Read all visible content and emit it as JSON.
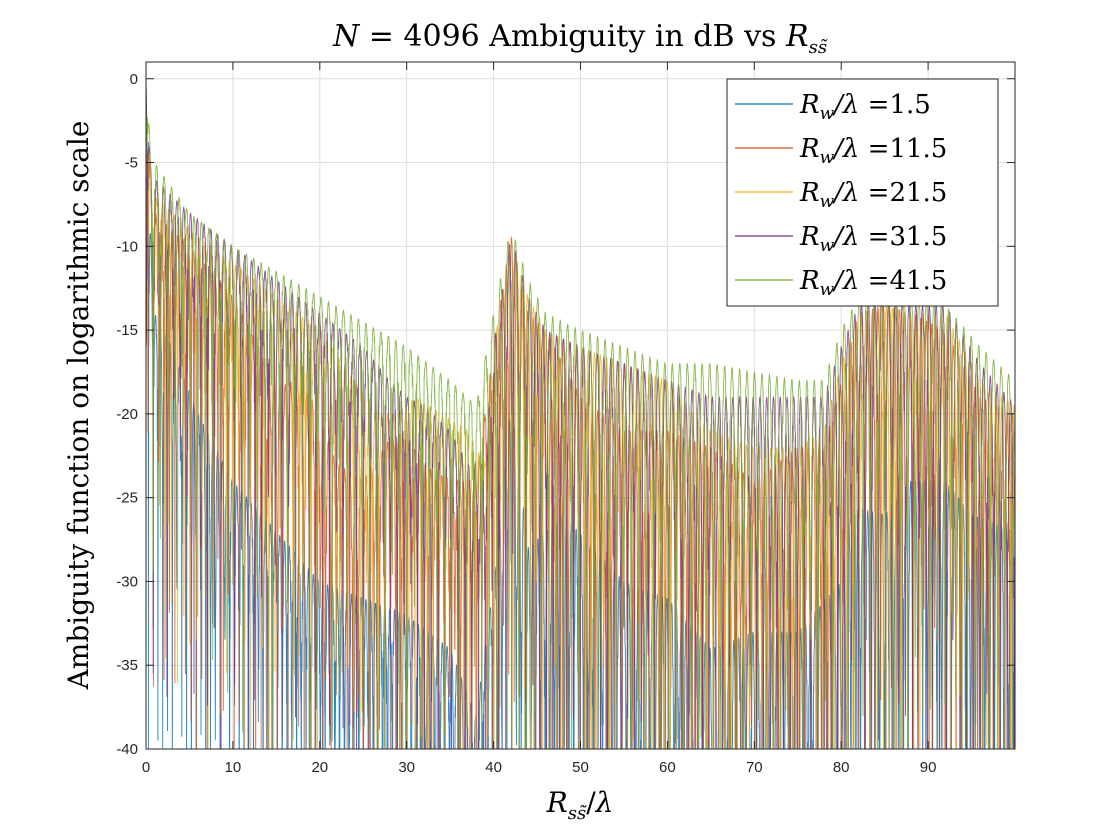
{
  "chart_data": {
    "type": "line",
    "title": "N = 4096 Ambiguity in dB vs R_ss̃",
    "xlabel": "R_ss̃/λ",
    "ylabel": "Ambiguity function on logarithmic scale",
    "xlim": [
      0,
      100
    ],
    "ylim": [
      -40,
      1
    ],
    "x_ticks": [
      0,
      10,
      20,
      30,
      40,
      50,
      60,
      70,
      80,
      90
    ],
    "x_tick_labels": [
      "0",
      "10",
      "20",
      "30",
      "40",
      "50",
      "60",
      "70",
      "80",
      "90"
    ],
    "y_ticks": [
      0,
      -5,
      -10,
      -15,
      -20,
      -25,
      -30,
      -35,
      -40
    ],
    "y_tick_labels": [
      "0",
      "-5",
      "-10",
      "-15",
      "-20",
      "-25",
      "-30",
      "-35",
      "-40"
    ],
    "grid": true,
    "legend_position": "top-right",
    "series": [
      {
        "name": "R_w/λ =1.5",
        "legend_label": "=1.5",
        "color": "#0072BD",
        "envelope": [
          [
            0,
            0
          ],
          [
            0.5,
            -9
          ],
          [
            1,
            -14
          ],
          [
            3,
            -16
          ],
          [
            6,
            -20
          ],
          [
            10,
            -24
          ],
          [
            15,
            -27
          ],
          [
            20,
            -30
          ],
          [
            25,
            -31
          ],
          [
            30,
            -32
          ],
          [
            35,
            -34
          ],
          [
            38,
            -38
          ],
          [
            40,
            -30
          ],
          [
            42,
            -19.3
          ],
          [
            44,
            -28
          ],
          [
            48,
            -26
          ],
          [
            55,
            -30
          ],
          [
            60,
            -31
          ],
          [
            65,
            -34
          ],
          [
            70,
            -33
          ],
          [
            75,
            -33
          ],
          [
            80,
            -30
          ],
          [
            81,
            -25.5
          ],
          [
            85,
            -26
          ],
          [
            88,
            -24
          ],
          [
            92,
            -24
          ],
          [
            95,
            -26
          ],
          [
            100,
            -27
          ]
        ]
      },
      {
        "name": "R_w/λ =11.5",
        "legend_label": "=11.5",
        "color": "#D95319",
        "envelope": [
          [
            0,
            0
          ],
          [
            0.5,
            -5
          ],
          [
            1,
            -8
          ],
          [
            5,
            -10
          ],
          [
            10,
            -13
          ],
          [
            13,
            -16
          ],
          [
            15,
            -18.5
          ],
          [
            17,
            -18
          ],
          [
            19,
            -19
          ],
          [
            22,
            -23
          ],
          [
            25,
            -24
          ],
          [
            28,
            -21.5
          ],
          [
            30,
            -21.5
          ],
          [
            33,
            -23.5
          ],
          [
            36,
            -24
          ],
          [
            38,
            -24
          ],
          [
            40,
            -16
          ],
          [
            42,
            -9.3
          ],
          [
            44,
            -14
          ],
          [
            46,
            -15
          ],
          [
            50,
            -19
          ],
          [
            55,
            -21
          ],
          [
            60,
            -21
          ],
          [
            65,
            -22
          ],
          [
            70,
            -24
          ],
          [
            75,
            -22
          ],
          [
            78,
            -22
          ],
          [
            80,
            -18
          ],
          [
            82,
            -14
          ],
          [
            85,
            -13.5
          ],
          [
            88,
            -14
          ],
          [
            92,
            -15
          ],
          [
            96,
            -19
          ],
          [
            100,
            -20
          ]
        ]
      },
      {
        "name": "R_w/λ =21.5",
        "legend_label": "=21.5",
        "color": "#EDB120",
        "envelope": [
          [
            0,
            0
          ],
          [
            0.5,
            -5
          ],
          [
            1,
            -7
          ],
          [
            5,
            -9
          ],
          [
            10,
            -11
          ],
          [
            15,
            -13
          ],
          [
            20,
            -15
          ],
          [
            24,
            -18
          ],
          [
            27,
            -20
          ],
          [
            29,
            -20
          ],
          [
            31,
            -19
          ],
          [
            34,
            -20
          ],
          [
            37,
            -21
          ],
          [
            39,
            -23
          ],
          [
            40,
            -16
          ],
          [
            42,
            -9.8
          ],
          [
            44,
            -13
          ],
          [
            46,
            -15
          ],
          [
            50,
            -16
          ],
          [
            55,
            -17
          ],
          [
            60,
            -18
          ],
          [
            63,
            -20
          ],
          [
            65,
            -21
          ],
          [
            70,
            -22
          ],
          [
            75,
            -22
          ],
          [
            78,
            -21
          ],
          [
            80,
            -17
          ],
          [
            82,
            -14
          ],
          [
            85,
            -13.5
          ],
          [
            88,
            -14
          ],
          [
            92,
            -14
          ],
          [
            96,
            -18
          ],
          [
            100,
            -19.5
          ]
        ]
      },
      {
        "name": "R_w/λ =31.5",
        "legend_label": "=31.5",
        "color": "#7E2F8E",
        "envelope": [
          [
            0,
            0
          ],
          [
            0.5,
            -5
          ],
          [
            1,
            -6
          ],
          [
            5,
            -8
          ],
          [
            10,
            -10
          ],
          [
            15,
            -12
          ],
          [
            20,
            -14
          ],
          [
            25,
            -16
          ],
          [
            28,
            -18
          ],
          [
            30,
            -19
          ],
          [
            32,
            -19.5
          ],
          [
            35,
            -21
          ],
          [
            37,
            -23
          ],
          [
            39,
            -23
          ],
          [
            40,
            -16
          ],
          [
            42,
            -9.2
          ],
          [
            44,
            -13
          ],
          [
            46,
            -15
          ],
          [
            50,
            -16
          ],
          [
            55,
            -17
          ],
          [
            60,
            -18
          ],
          [
            65,
            -19
          ],
          [
            70,
            -19
          ],
          [
            74,
            -19
          ],
          [
            78,
            -19
          ],
          [
            80,
            -16
          ],
          [
            82,
            -13.5
          ],
          [
            85,
            -13
          ],
          [
            88,
            -13.5
          ],
          [
            92,
            -13.5
          ],
          [
            96,
            -17
          ],
          [
            100,
            -19.5
          ]
        ]
      },
      {
        "name": "R_w/λ =41.5",
        "legend_label": "=41.5",
        "color": "#77AC30",
        "envelope": [
          [
            0,
            0
          ],
          [
            0.5,
            -4
          ],
          [
            1,
            -5
          ],
          [
            5,
            -8
          ],
          [
            10,
            -10
          ],
          [
            15,
            -11.5
          ],
          [
            20,
            -13
          ],
          [
            25,
            -14.5
          ],
          [
            30,
            -16
          ],
          [
            35,
            -18
          ],
          [
            38,
            -19.5
          ],
          [
            40,
            -14
          ],
          [
            42,
            -8.8
          ],
          [
            44,
            -12
          ],
          [
            46,
            -14
          ],
          [
            50,
            -15
          ],
          [
            55,
            -16
          ],
          [
            60,
            -17
          ],
          [
            65,
            -17
          ],
          [
            70,
            -17.5
          ],
          [
            75,
            -18
          ],
          [
            78,
            -18
          ],
          [
            80,
            -15
          ],
          [
            82,
            -13
          ],
          [
            85,
            -13
          ],
          [
            88,
            -13
          ],
          [
            92,
            -13.5
          ],
          [
            96,
            -16
          ],
          [
            100,
            -18
          ]
        ]
      }
    ]
  }
}
